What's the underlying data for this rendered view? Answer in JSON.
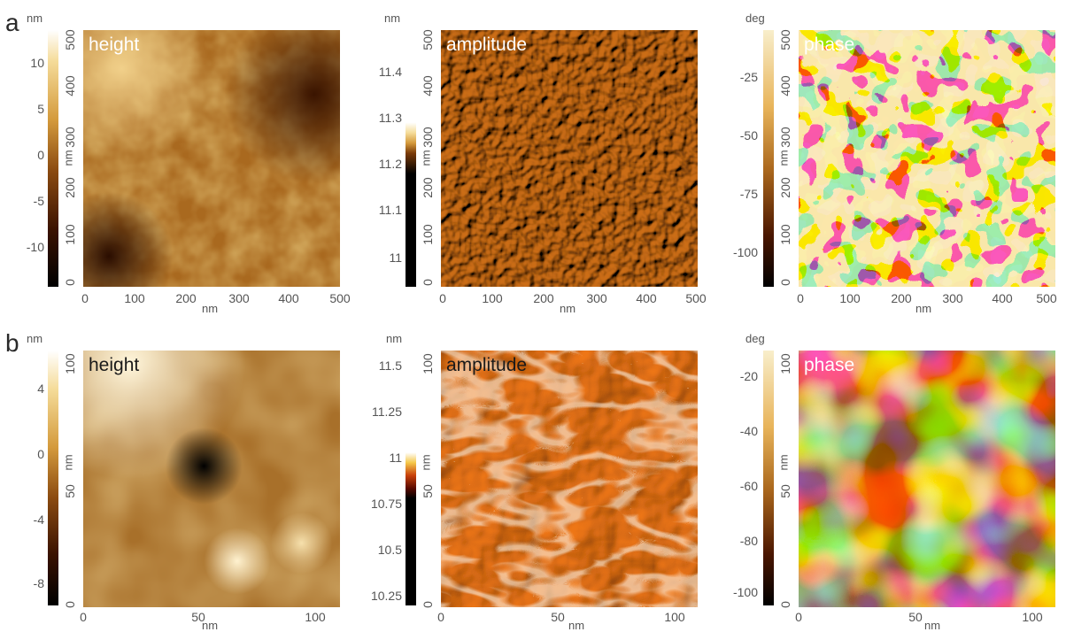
{
  "rows": [
    {
      "label": "a",
      "panels": [
        {
          "name": "height",
          "colorbar_unit": "nm",
          "colorbar_ticks": [
            "10",
            "5",
            "0",
            "-5",
            "-10"
          ],
          "y_ticks": [
            "500",
            "400",
            "300",
            "200",
            "100",
            "0"
          ],
          "y_axis_unit": "nm",
          "x_ticks": [
            "0",
            "100",
            "200",
            "300",
            "400",
            "500"
          ],
          "x_axis_unit": "nm"
        },
        {
          "name": "amplitude",
          "colorbar_unit": "nm",
          "colorbar_ticks": [
            "11.4",
            "11.3",
            "11.2",
            "11.1",
            "11"
          ],
          "y_ticks": [
            "500",
            "400",
            "300",
            "200",
            "100",
            "0"
          ],
          "y_axis_unit": "nm",
          "x_ticks": [
            "0",
            "100",
            "200",
            "300",
            "400",
            "500"
          ],
          "x_axis_unit": "nm"
        },
        {
          "name": "phase",
          "colorbar_unit": "deg",
          "colorbar_ticks": [
            "-25",
            "-50",
            "-75",
            "-100"
          ],
          "y_ticks": [
            "500",
            "400",
            "300",
            "200",
            "100",
            "0"
          ],
          "y_axis_unit": "nm",
          "x_ticks": [
            "0",
            "100",
            "200",
            "300",
            "400",
            "500"
          ],
          "x_axis_unit": "nm"
        }
      ]
    },
    {
      "label": "b",
      "panels": [
        {
          "name": "height",
          "colorbar_unit": "nm",
          "colorbar_ticks": [
            "4",
            "0",
            "-4",
            "-8"
          ],
          "y_ticks": [
            "100",
            "50",
            "0"
          ],
          "y_axis_unit": "nm",
          "x_ticks": [
            "0",
            "50",
            "100"
          ],
          "x_axis_unit": "nm"
        },
        {
          "name": "amplitude",
          "colorbar_unit": "nm",
          "colorbar_ticks": [
            "11.5",
            "11.25",
            "11",
            "10.75",
            "10.5",
            "10.25"
          ],
          "y_ticks": [
            "100",
            "50",
            "0"
          ],
          "y_axis_unit": "nm",
          "x_ticks": [
            "0",
            "50",
            "100"
          ],
          "x_axis_unit": "nm"
        },
        {
          "name": "phase",
          "colorbar_unit": "deg",
          "colorbar_ticks": [
            "-20",
            "-40",
            "-60",
            "-80",
            "-100"
          ],
          "y_ticks": [
            "100",
            "50",
            "0"
          ],
          "y_axis_unit": "nm",
          "x_ticks": [
            "0",
            "50",
            "100"
          ],
          "x_axis_unit": "nm"
        }
      ]
    }
  ],
  "colors": {
    "afm_dark": "#1a0a00",
    "afm_mid": "#a0601a",
    "afm_light": "#f5dc9a",
    "amp_b_base": "#e08a1a"
  }
}
